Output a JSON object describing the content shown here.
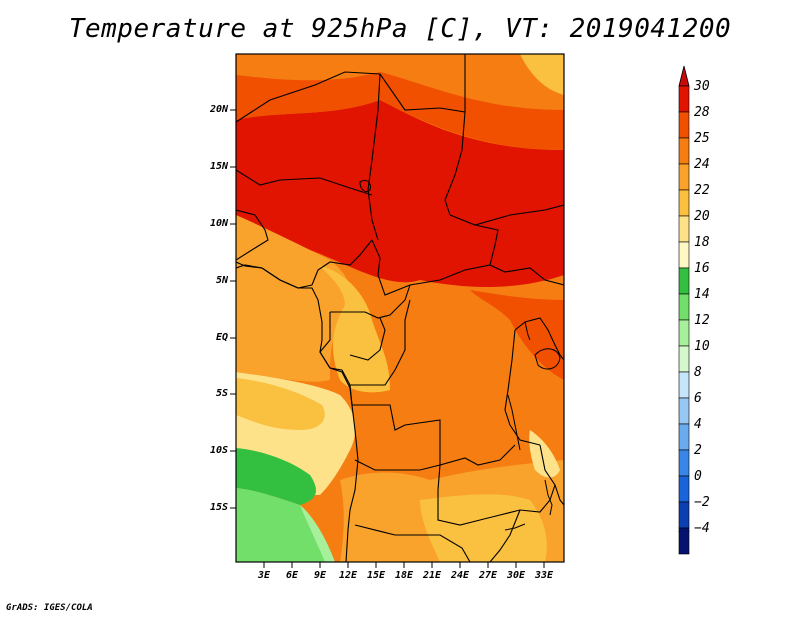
{
  "title": "Temperature at 925hPa [C], VT: 2019041200",
  "credit": "GrADS: IGES/COLA",
  "lat_labels": [
    "20N",
    "15N",
    "10N",
    "5N",
    "EQ",
    "5S",
    "10S",
    "15S"
  ],
  "lon_labels": [
    "3E",
    "6E",
    "9E",
    "12E",
    "15E",
    "18E",
    "21E",
    "24E",
    "27E",
    "30E",
    "33E"
  ],
  "colorbar": {
    "labels": [
      "30",
      "28",
      "25",
      "24",
      "22",
      "20",
      "18",
      "16",
      "14",
      "12",
      "10",
      "8",
      "6",
      "4",
      "2",
      "0",
      "−2",
      "−4"
    ],
    "colors": [
      "#e01400",
      "#f05000",
      "#f57d12",
      "#f9a22c",
      "#fac040",
      "#fde28a",
      "#fff7c4",
      "#33c040",
      "#72df6a",
      "#a7f09b",
      "#d5f7cc",
      "#c5e5fa",
      "#97c7f3",
      "#6aabee",
      "#3a86e8",
      "#1a63d8",
      "#0c40b0",
      "#05136e"
    ],
    "top_cap": "#c80a0a",
    "bottom_cap": "#e4e2f8"
  },
  "map_colors": {
    "hot": "#e01400",
    "very_warm": "#f05000",
    "warm": "#f57d12",
    "mild": "#f9a22c",
    "cool": "#fac040",
    "cooler": "#fde28a",
    "green_dark": "#33c040",
    "green": "#72df6a",
    "green_light": "#a7f09b"
  }
}
